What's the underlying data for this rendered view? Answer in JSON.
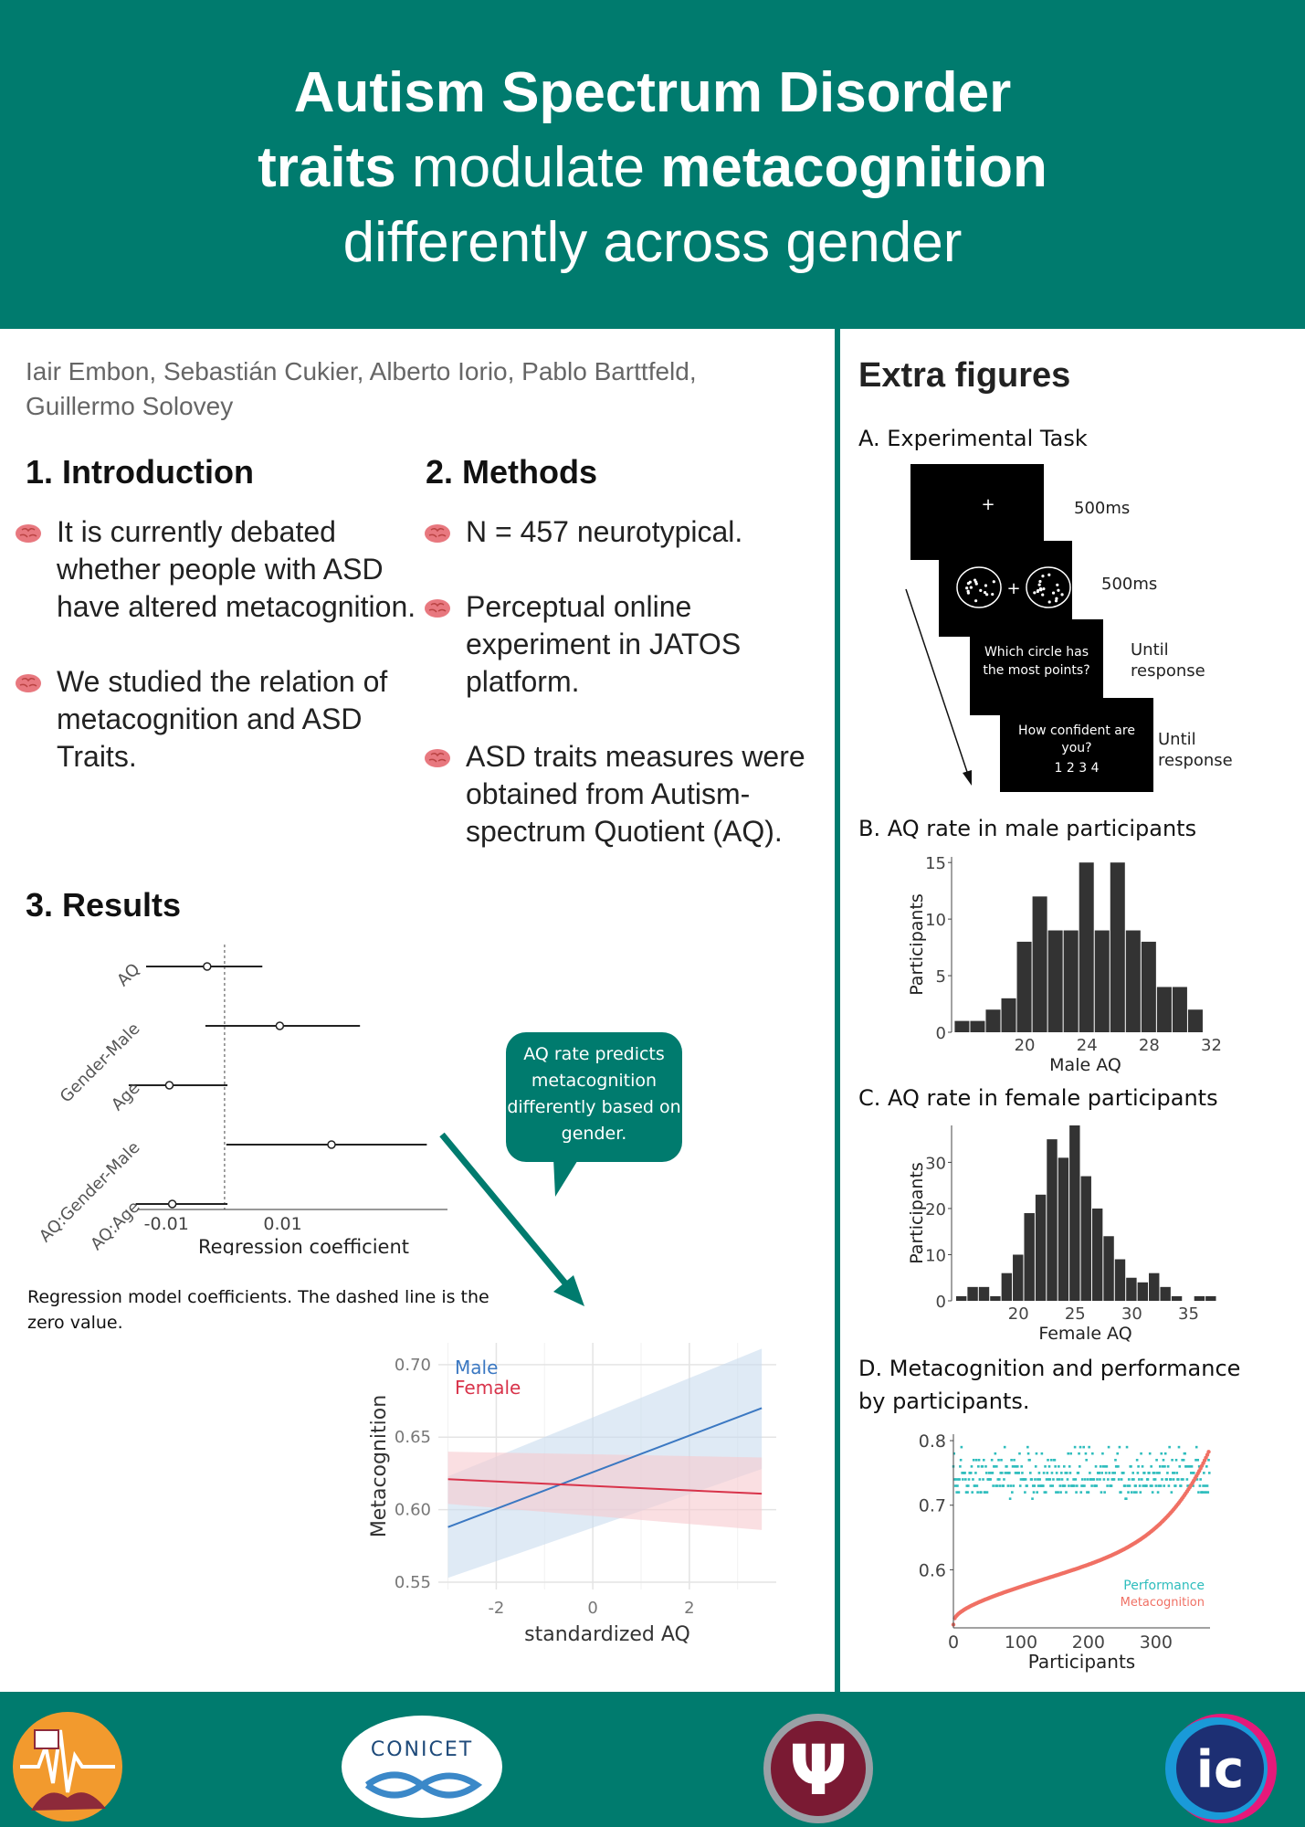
{
  "title": {
    "line1": "Autism Spectrum Disorder",
    "line2_bold_a": "traits",
    "line2_regular": " modulate ",
    "line2_bold_b": "metacognition",
    "line3": "differently across gender"
  },
  "authors": "Iair Embon, Sebastián Cukier, Alberto Iorio, Pablo Barttfeld, Guillermo Solovey",
  "introduction": {
    "heading": "1. Introduction",
    "bullets": [
      "It is currently debated whether people with ASD have altered metacognition.",
      "We studied the relation of metacognition and ASD Traits."
    ]
  },
  "methods": {
    "heading": "2. Methods",
    "bullets": [
      "N = 457 neurotypical.",
      "Perceptual online experiment in JATOS platform.",
      "ASD traits measures were obtained from Autism-spectrum Quotient (AQ)."
    ]
  },
  "results": {
    "heading": "3. Results",
    "caption": "Regression model coefficients. The dashed line is the zero value.",
    "bubble": "AQ rate predicts metacognition differently based on gender."
  },
  "extra": {
    "heading": "Extra figures",
    "a_title": "A. Experimental Task",
    "task": {
      "s1_duration": "500ms",
      "s2_duration": "500ms",
      "s3_text_1": "Which circle has",
      "s3_text_2": "the most points?",
      "s3_duration_1": "Until",
      "s3_duration_2": "response",
      "s4_text_1": "How confident are",
      "s4_text_2": "you?",
      "s4_scale": "1 2 3 4",
      "s4_duration_1": "Until",
      "s4_duration_2": "response",
      "fixation": "+"
    },
    "b_title": "B. AQ rate in male participants",
    "c_title": "C. AQ rate in female participants",
    "d_title_1": "D. Metacognition and performance",
    "d_title_2": "by participants."
  },
  "logos": {
    "conicet": "CONICET",
    "psi": "Ψ",
    "ic": "ic"
  },
  "chart_data": [
    {
      "type": "forest",
      "xlabel": "Regression coefficient",
      "xticks": [
        "-0.01",
        "0.01"
      ],
      "categories": [
        "AQ",
        "Gender-Male",
        "Age",
        "AQ:Gender-Male",
        "AQ:Age"
      ],
      "estimates": [
        -0.003,
        0.0095,
        -0.0095,
        0.0184,
        -0.009
      ],
      "ci_low": [
        -0.0135,
        -0.0033,
        -0.0165,
        0.0003,
        -0.0153
      ],
      "ci_high": [
        0.0065,
        0.0233,
        0.0005,
        0.0348,
        0.0005
      ],
      "zero_line": "dashed"
    },
    {
      "type": "line",
      "xlabel": "standardized AQ",
      "ylabel": "Metacognition",
      "xlim": [
        -3.2,
        3.8
      ],
      "ylim": [
        0.545,
        0.715
      ],
      "xticks": [
        -2,
        0,
        2
      ],
      "yticks": [
        "0.55",
        "0.60",
        "0.65",
        "0.70"
      ],
      "series": [
        {
          "name": "Male",
          "color": "#3b78c2",
          "x": [
            -3,
            3.5
          ],
          "y": [
            0.588,
            0.67
          ],
          "band_low": [
            0.553,
            0.628
          ],
          "band_high": [
            0.623,
            0.711
          ]
        },
        {
          "name": "Female",
          "color": "#d8334a",
          "x": [
            -3,
            3.5
          ],
          "y": [
            0.621,
            0.611
          ],
          "band_low": [
            0.604,
            0.586
          ],
          "band_high": [
            0.64,
            0.636
          ]
        }
      ]
    },
    {
      "type": "bar",
      "title": "B. AQ rate in male participants",
      "xlabel": "Male AQ",
      "ylabel": "Participants",
      "x": [
        16,
        17,
        18,
        19,
        20,
        21,
        22,
        23,
        24,
        25,
        26,
        27,
        28,
        29,
        30,
        31,
        32
      ],
      "values": [
        1,
        1,
        2,
        3,
        8,
        12,
        9,
        9,
        15,
        9,
        15,
        9,
        8,
        4,
        4,
        2,
        0
      ],
      "xticks": [
        20,
        24,
        28,
        32
      ],
      "yticks": [
        0,
        5,
        10,
        15
      ]
    },
    {
      "type": "bar",
      "title": "C. AQ rate in female participants",
      "xlabel": "Female AQ",
      "ylabel": "Participants",
      "x": [
        15,
        16,
        17,
        18,
        19,
        20,
        21,
        22,
        23,
        24,
        25,
        26,
        27,
        28,
        29,
        30,
        31,
        32,
        33,
        34,
        35,
        36,
        37
      ],
      "values": [
        1,
        3,
        3,
        1,
        6,
        10,
        19,
        23,
        35,
        31,
        38,
        27,
        20,
        14,
        9,
        5,
        4,
        6,
        3,
        1,
        0,
        1,
        1
      ],
      "xticks": [
        20,
        25,
        30,
        35
      ],
      "yticks": [
        0,
        10,
        20,
        30
      ]
    },
    {
      "type": "scatter",
      "xlabel": "Participants",
      "xticks": [
        0,
        100,
        200,
        300
      ],
      "yticks": [
        "0.6",
        "0.7",
        "0.8"
      ],
      "ylim": [
        0.51,
        0.81
      ],
      "xlim": [
        0,
        380
      ],
      "series": [
        {
          "name": "Performance",
          "color": "#2ebdbd",
          "description": "values between 0.70 and 0.80, mostly around 0.73-0.77"
        },
        {
          "name": "Metacognition",
          "color": "#f07064",
          "description": "sorted ascending from about 0.51 to 0.78"
        }
      ]
    }
  ]
}
